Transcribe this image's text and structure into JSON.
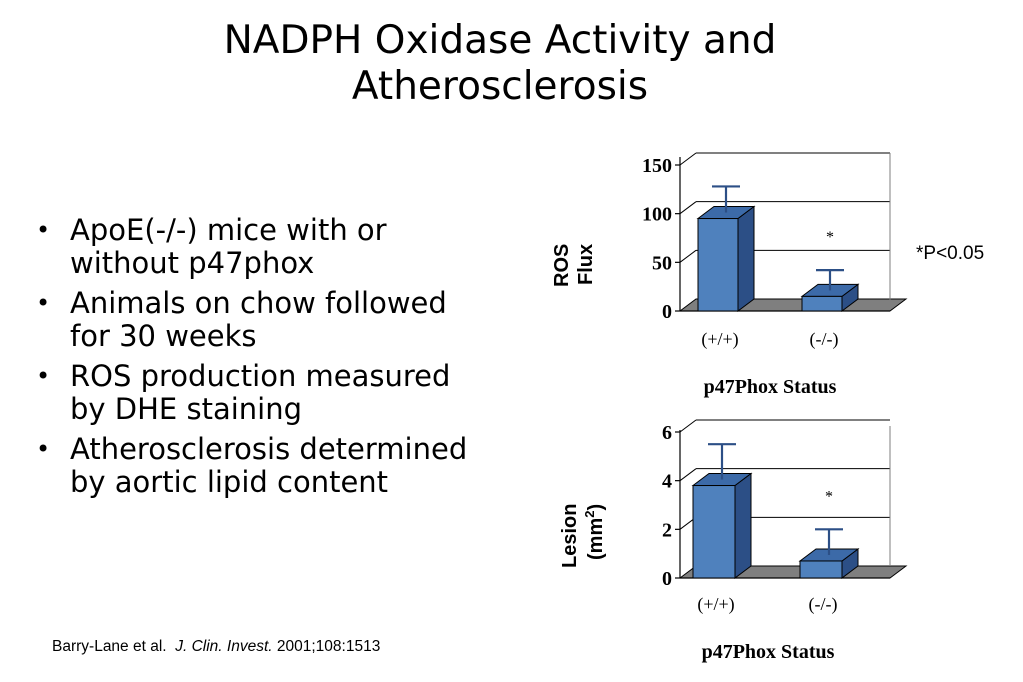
{
  "title": {
    "line1": "NADPH Oxidase Activity and",
    "line2": "Atherosclerosis"
  },
  "bullets": [
    "ApoE(-/-) mice with or without p47phox",
    "Animals on chow followed for 30 weeks",
    "ROS production measured by DHE staining",
    "Atherosclerosis determined by aortic lipid content"
  ],
  "citation": {
    "authors": "Barry-Lane et al.",
    "journal": "J. Clin. Invest.",
    "ref": "2001;108:1513"
  },
  "significance_note": "*P<0.05",
  "colors": {
    "bar_front": "#4f81bd",
    "bar_top": "#3c6aa8",
    "bar_side": "#2c4f86",
    "floor": "#7f7f7f"
  },
  "chart_data": [
    {
      "type": "bar",
      "ylabel_lines": [
        "ROS",
        "Flux"
      ],
      "xlabel": "p47Phox Status",
      "categories": [
        "(+/+)",
        "(-/-)"
      ],
      "values": [
        95,
        15
      ],
      "errors": [
        33,
        27
      ],
      "markers": [
        "",
        "*"
      ],
      "ylim": [
        0,
        150
      ],
      "ticks": [
        0,
        50,
        100,
        150
      ],
      "tick_labels": [
        "0",
        "50",
        "100",
        "150"
      ],
      "grid": true
    },
    {
      "type": "bar",
      "ylabel_main": "Lesion",
      "ylabel_unit": "(mm",
      "ylabel_sup": "2",
      "ylabel_close": ")",
      "xlabel": "p47Phox Status",
      "categories": [
        "(+/+)",
        "(-/-)"
      ],
      "values": [
        3.8,
        0.7
      ],
      "errors": [
        1.7,
        1.3
      ],
      "markers": [
        "",
        "*"
      ],
      "ylim": [
        0,
        6
      ],
      "ticks": [
        0,
        2,
        4,
        6
      ],
      "tick_labels": [
        "0",
        "2",
        "4",
        "6"
      ],
      "grid": true
    }
  ]
}
